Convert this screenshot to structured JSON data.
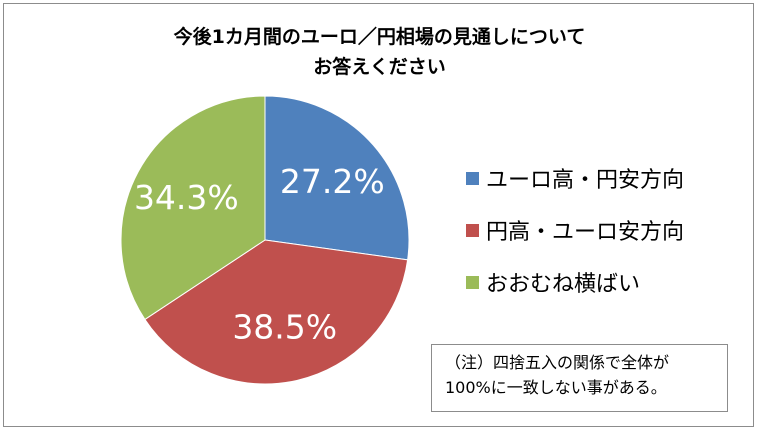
{
  "title": {
    "line1": "今後1カ月間のユーロ／円相場の見通しについて",
    "line2": "お答えください"
  },
  "chart_data": {
    "type": "pie",
    "title": "今後1カ月間のユーロ／円相場の見通しについてお答えください",
    "slices": [
      {
        "label": "ユーロ高・円安方向",
        "value": 27.2,
        "display": "27.2%",
        "color": "#4f81bd"
      },
      {
        "label": "円高・ユーロ安方向",
        "value": 38.5,
        "display": "38.5%",
        "color": "#c0504d"
      },
      {
        "label": "おおむね横ばい",
        "value": 34.3,
        "display": "34.3%",
        "color": "#9bbb59"
      }
    ],
    "legend_position": "right"
  },
  "note": {
    "line1": "（注）四捨五入の関係で全体が",
    "line2": "100%に一致しない事がある。"
  }
}
